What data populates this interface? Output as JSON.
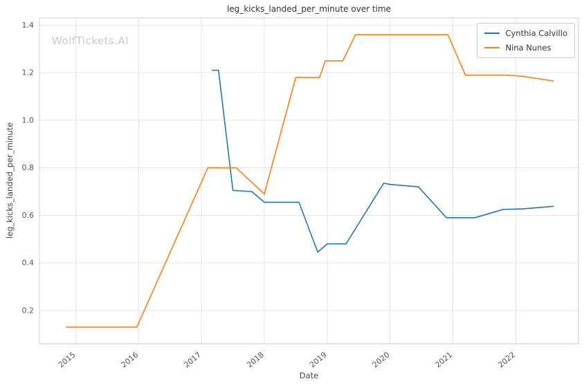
{
  "chart_data": {
    "type": "line",
    "title": "leg_kicks_landed_per_minute over time",
    "xlabel": "Date",
    "ylabel": "leg_kicks_landed_per_minute",
    "watermark": "WolfTickets.AI",
    "xlim": [
      2014.42,
      2023.0
    ],
    "ylim": [
      0.06,
      1.43
    ],
    "xticks": [
      2015,
      2016,
      2017,
      2018,
      2019,
      2020,
      2021,
      2022
    ],
    "yticks": [
      0.2,
      0.4,
      0.6,
      0.8,
      1.0,
      1.2,
      1.4
    ],
    "grid": true,
    "legend_position": "upper right",
    "colors": {
      "grid": "#e3e3e3",
      "border": "#cccccc",
      "tick": "#555555"
    },
    "series": [
      {
        "name": "Cynthia Calvillo",
        "color": "#1f77b4",
        "points": [
          [
            2017.17,
            1.21
          ],
          [
            2017.27,
            1.21
          ],
          [
            2017.5,
            0.705
          ],
          [
            2017.8,
            0.7
          ],
          [
            2018.0,
            0.655
          ],
          [
            2018.55,
            0.655
          ],
          [
            2018.85,
            0.445
          ],
          [
            2019.0,
            0.48
          ],
          [
            2019.3,
            0.48
          ],
          [
            2019.9,
            0.735
          ],
          [
            2020.0,
            0.73
          ],
          [
            2020.45,
            0.72
          ],
          [
            2020.9,
            0.59
          ],
          [
            2021.35,
            0.59
          ],
          [
            2021.8,
            0.625
          ],
          [
            2022.1,
            0.627
          ],
          [
            2022.6,
            0.638
          ]
        ]
      },
      {
        "name": "Nina Nunes",
        "color": "#ff7f0e",
        "points": [
          [
            2014.85,
            0.13
          ],
          [
            2015.97,
            0.13
          ],
          [
            2017.1,
            0.8
          ],
          [
            2017.55,
            0.8
          ],
          [
            2018.0,
            0.69
          ],
          [
            2018.5,
            1.18
          ],
          [
            2018.88,
            1.18
          ],
          [
            2018.97,
            1.25
          ],
          [
            2019.25,
            1.25
          ],
          [
            2019.45,
            1.36
          ],
          [
            2020.92,
            1.36
          ],
          [
            2021.2,
            1.19
          ],
          [
            2021.85,
            1.19
          ],
          [
            2022.1,
            1.185
          ],
          [
            2022.6,
            1.165
          ]
        ]
      }
    ]
  }
}
